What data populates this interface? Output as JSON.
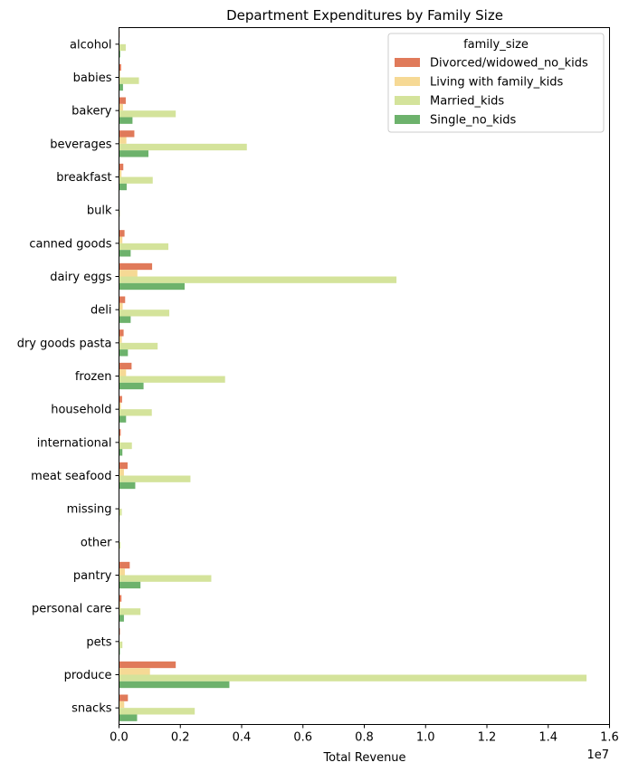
{
  "chart_data": {
    "type": "bar",
    "orientation": "horizontal",
    "title": "Department Expenditures by Family Size",
    "xlabel": "Total Revenue",
    "ylabel": "",
    "x_offset_label": "1e7",
    "xlim": [
      0,
      16000000
    ],
    "xticks": [
      0,
      2000000,
      4000000,
      6000000,
      8000000,
      10000000,
      12000000,
      14000000,
      16000000
    ],
    "xtick_labels": [
      "0.0",
      "0.2",
      "0.4",
      "0.6",
      "0.8",
      "1.0",
      "1.2",
      "1.4",
      "1.6"
    ],
    "grid": false,
    "legend_position": "top-right",
    "legend_title": "family_size",
    "categories": [
      "alcohol",
      "babies",
      "bakery",
      "beverages",
      "breakfast",
      "bulk",
      "canned goods",
      "dairy eggs",
      "deli",
      "dry goods pasta",
      "frozen",
      "household",
      "international",
      "meat seafood",
      "missing",
      "other",
      "pantry",
      "personal care",
      "pets",
      "produce",
      "snacks"
    ],
    "series": [
      {
        "name": "Divorced/widowed_no_kids",
        "color": "#e07a5a",
        "values": [
          20000,
          70000,
          220000,
          500000,
          140000,
          8000,
          180000,
          1080000,
          200000,
          150000,
          410000,
          100000,
          55000,
          280000,
          12000,
          8000,
          350000,
          80000,
          30000,
          1850000,
          290000
        ]
      },
      {
        "name": "Living with family_kids",
        "color": "#f6d995",
        "values": [
          15000,
          35000,
          130000,
          240000,
          80000,
          5000,
          110000,
          600000,
          120000,
          90000,
          230000,
          60000,
          35000,
          160000,
          6000,
          5000,
          190000,
          40000,
          15000,
          1010000,
          170000
        ]
      },
      {
        "name": "Married_kids",
        "color": "#d4e39b",
        "values": [
          220000,
          650000,
          1850000,
          4170000,
          1100000,
          30000,
          1610000,
          9050000,
          1640000,
          1260000,
          3460000,
          1070000,
          420000,
          2330000,
          90000,
          50000,
          3010000,
          700000,
          110000,
          15250000,
          2470000
        ]
      },
      {
        "name": "Single_no_kids",
        "color": "#6db26c",
        "values": [
          40000,
          130000,
          440000,
          960000,
          250000,
          10000,
          380000,
          2140000,
          380000,
          290000,
          800000,
          230000,
          110000,
          530000,
          20000,
          15000,
          700000,
          160000,
          30000,
          3600000,
          590000
        ]
      }
    ]
  }
}
